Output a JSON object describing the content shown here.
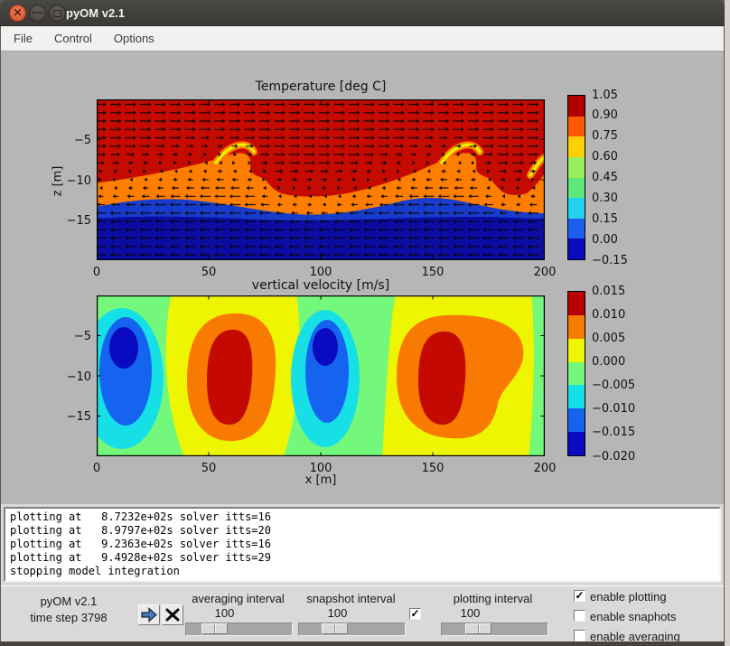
{
  "window": {
    "title": "pyOM v2.1",
    "menu": [
      "File",
      "Control",
      "Options"
    ]
  },
  "canvas": {
    "plot1": {
      "title": "Temperature [deg C]",
      "ylabel": "z [m]",
      "xticks": [
        "0",
        "50",
        "100",
        "150",
        "200"
      ],
      "yticks": [
        "−5",
        "−10",
        "−15"
      ]
    },
    "plot2": {
      "title": "vertical velocity [m/s]",
      "xlabel": "x [m]",
      "xticks": [
        "0",
        "50",
        "100",
        "150",
        "200"
      ],
      "yticks": [
        "−5",
        "−10",
        "−15"
      ]
    },
    "colorbar1": {
      "labels": [
        "1.05",
        "0.90",
        "0.75",
        "0.60",
        "0.45",
        "0.30",
        "0.15",
        "0.00",
        "−0.15"
      ],
      "colors": [
        "#b20000",
        "#ff5a00",
        "#ffd000",
        "#9aee5a",
        "#5ce87d",
        "#22d2ee",
        "#1a5ff0",
        "#0b0bbe"
      ]
    },
    "colorbar2": {
      "labels": [
        "0.015",
        "0.010",
        "0.005",
        "0.000",
        "−0.005",
        "−0.010",
        "−0.015",
        "−0.020"
      ],
      "colors": [
        "#b80000",
        "#f87a00",
        "#eef500",
        "#74f87c",
        "#17dfe6",
        "#1464f0",
        "#0a0ac0"
      ]
    }
  },
  "chart_data": [
    {
      "type": "heatmap",
      "title": "Temperature [deg C]",
      "xlabel": "",
      "ylabel": "z [m]",
      "x_range_m": [
        0,
        200
      ],
      "z_range_m": [
        -20,
        0
      ],
      "xticks": [
        0,
        50,
        100,
        150,
        200
      ],
      "yticks": [
        -5,
        -10,
        -15
      ],
      "contour_levels": [
        -0.15,
        0.0,
        0.15,
        0.3,
        0.45,
        0.6,
        0.75,
        0.9,
        1.05
      ],
      "description": "Kelvin-Helmholtz billows: warm layer (T≈1.0, dark red) above cold layer (T≈-0.1, dark blue); wavy interface near z≈-10 m with overturning billows near x≈60 m and x≈160 m and a partial billow at the right edge; thin orange/yellow/green/cyan fringes along the interface",
      "overlay": "quiver velocity arrows: rightward flow in the upper warm layer, leftward flow in the lower cold layer, arrow length shrinking near the interface"
    },
    {
      "type": "heatmap",
      "title": "vertical velocity [m/s]",
      "xlabel": "x [m]",
      "ylabel": "",
      "x_range_m": [
        0,
        200
      ],
      "z_range_m": [
        -20,
        0
      ],
      "xticks": [
        0,
        50,
        100,
        150,
        200
      ],
      "yticks": [
        -5,
        -10,
        -15
      ],
      "contour_levels": [
        -0.02,
        -0.015,
        -0.01,
        -0.005,
        0.0,
        0.005,
        0.01,
        0.015
      ],
      "description": "Alternating convection cells: downwelling cores (w≈-0.02, dark blue inside blue/cyan blobs) centered near x≈12 m and x≈102 m, upwelling cores (w≈+0.015, dark red inside orange blobs) centered near x≈60 m and x≈155 m, on alternating green (slightly negative) and yellow (slightly positive) background bands"
    }
  ],
  "log": {
    "lines": [
      "plotting at   8.7232e+02s solver itts=16",
      "plotting at   8.9797e+02s solver itts=20",
      "plotting at   9.2363e+02s solver itts=16",
      "plotting at   9.4928e+02s solver itts=29",
      "stopping model integration"
    ]
  },
  "controls": {
    "app_label": "pyOM v2.1",
    "timestep_label": "time step 3798",
    "averaging": {
      "label": "averaging interval",
      "value": "100"
    },
    "snapshot": {
      "label": "snapshot interval",
      "value": "100"
    },
    "snapshot_checkbox": {
      "checked": true
    },
    "plotting": {
      "label": "plotting interval",
      "value": "100"
    },
    "checkboxes": [
      {
        "label": "enable plotting",
        "checked": true
      },
      {
        "label": "enable snaphots",
        "checked": false
      },
      {
        "label": "enable averaging",
        "checked": false
      }
    ]
  }
}
